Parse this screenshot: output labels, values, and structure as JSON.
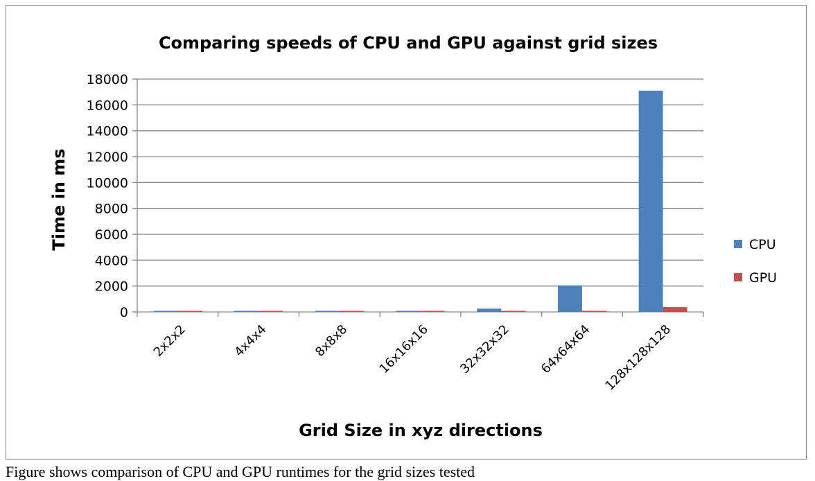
{
  "chart_data": {
    "type": "bar",
    "title": "Comparing speeds of CPU and GPU against grid sizes",
    "xlabel": "Grid Size in xyz directions",
    "ylabel": "Time in ms",
    "categories": [
      "2x2x2",
      "4x4x4",
      "8x8x8",
      "16x16x16",
      "32x32x32",
      "64x64x64",
      "128x128x128"
    ],
    "series": [
      {
        "name": "CPU",
        "color": "#4f81bd",
        "values": [
          1,
          2,
          5,
          15,
          250,
          2050,
          17100
        ]
      },
      {
        "name": "GPU",
        "color": "#c0504d",
        "values": [
          5,
          5,
          5,
          8,
          15,
          40,
          370
        ]
      }
    ],
    "ylim": [
      0,
      18000
    ],
    "yticks": [
      0,
      2000,
      4000,
      6000,
      8000,
      10000,
      12000,
      14000,
      16000,
      18000
    ],
    "grid": true,
    "legend": "right"
  },
  "caption_fragment": "Figure shows comparison of CPU and GPU runtimes for the grid sizes tested"
}
